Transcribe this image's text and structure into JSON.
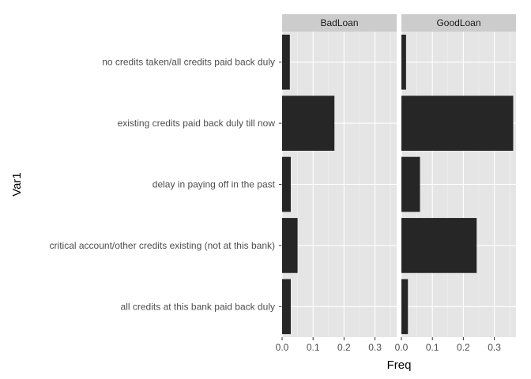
{
  "chart_data": {
    "type": "bar",
    "orientation": "horizontal",
    "xlabel": "Freq",
    "ylabel": "Var1",
    "categories": [
      "no credits taken/all credits paid back duly",
      "existing credits paid back duly till now",
      "delay in paying off in the past",
      "critical account/other credits existing (not at this bank)",
      "all credits at this bank paid back duly"
    ],
    "xlim": [
      0,
      0.37
    ],
    "xticks": [
      0.0,
      0.1,
      0.2,
      0.3
    ],
    "xtick_labels": [
      "0.0",
      "0.1",
      "0.2",
      "0.3"
    ],
    "grid": true,
    "panels": [
      {
        "name": "BadLoan",
        "values": [
          0.025,
          0.169,
          0.028,
          0.05,
          0.028
        ]
      },
      {
        "name": "GoodLoan",
        "values": [
          0.015,
          0.361,
          0.06,
          0.243,
          0.021
        ]
      }
    ]
  },
  "colors": {
    "panel_background": "#e5e5e5",
    "grid_major": "#ffffff",
    "grid_minor": "#f2f2f2",
    "strip_background": "#cccccc",
    "bar_fill": "#262626"
  }
}
